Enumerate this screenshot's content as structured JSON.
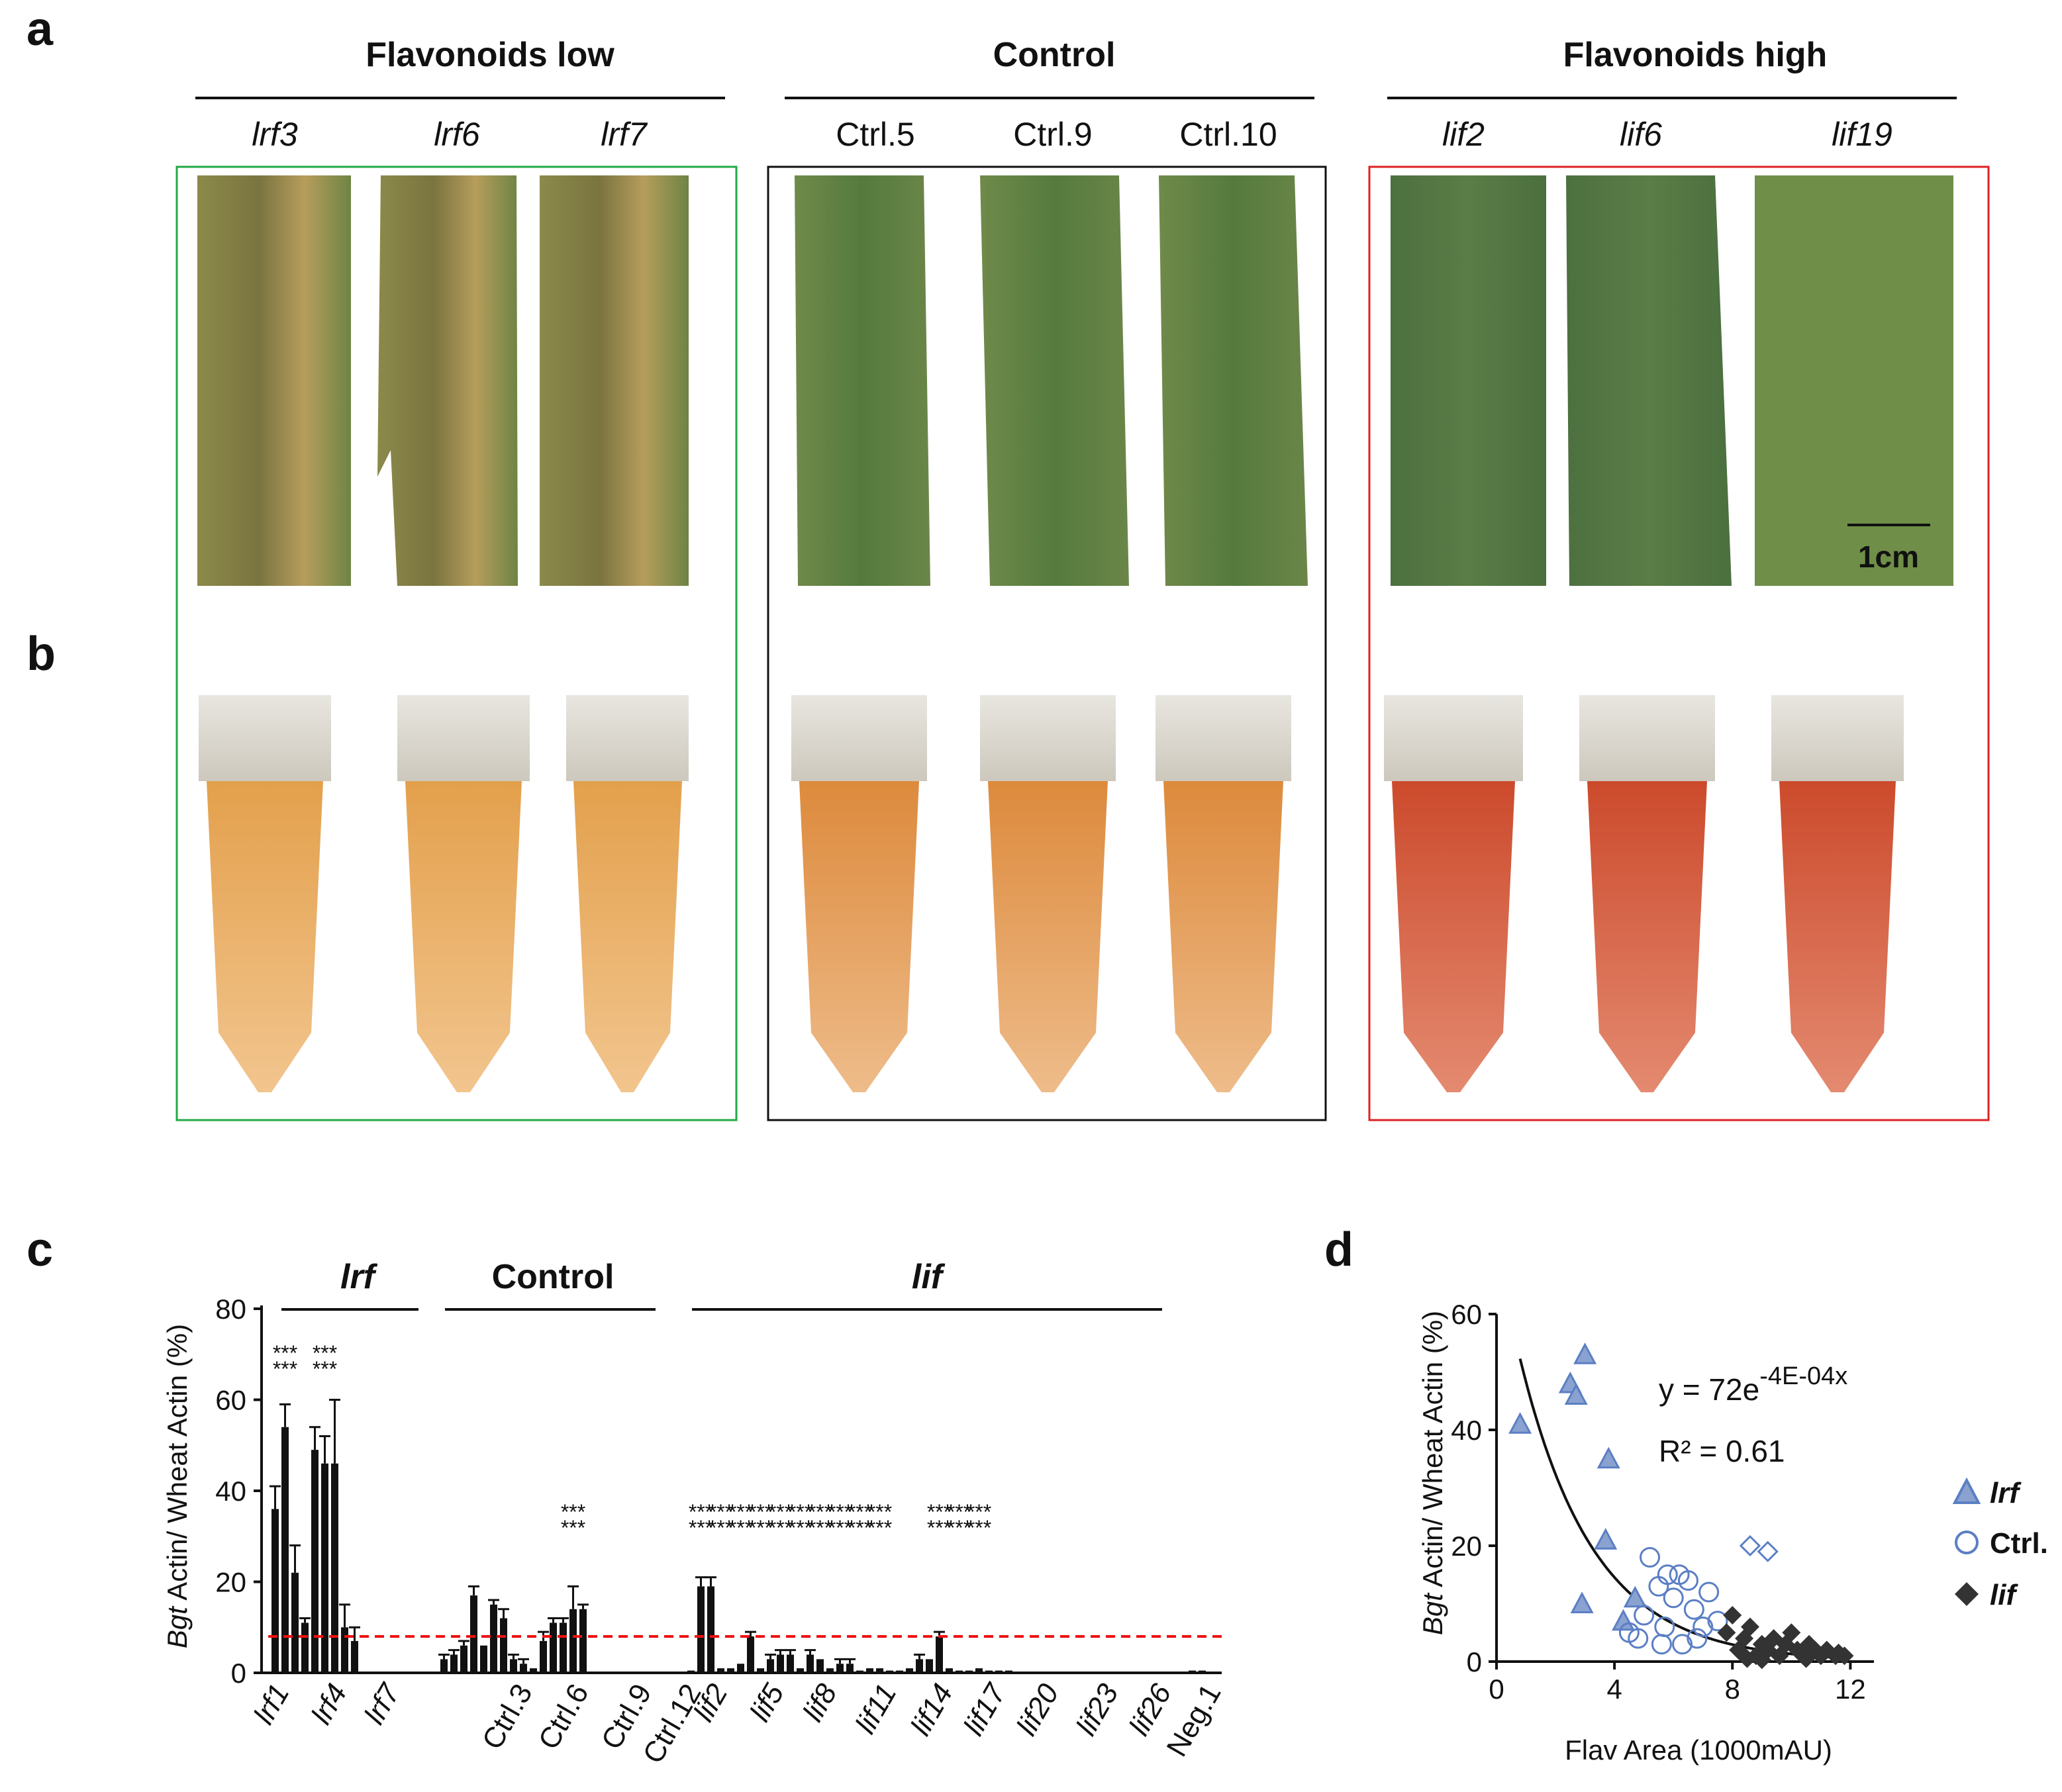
{
  "panel_labels": {
    "a": "a",
    "b": "b",
    "c": "c",
    "d": "d"
  },
  "colors": {
    "low_box": "#22aa44",
    "control_box": "#111111",
    "high_box": "#dd2222",
    "threshold_line": "#ee1111",
    "scatter_blue": "#5b7fc4",
    "scatter_dark": "#333333"
  },
  "panel_a": {
    "groups": [
      {
        "title": "Flavonoids  low",
        "samples": [
          "lrf3",
          "lrf6",
          "lrf7"
        ],
        "italic": true
      },
      {
        "title": "Control",
        "samples": [
          "Ctrl.5",
          "Ctrl.9",
          "Ctrl.10"
        ],
        "italic": false
      },
      {
        "title": "Flavonoids high",
        "samples": [
          "lif2",
          "lif6",
          "lif19"
        ],
        "italic": true
      }
    ],
    "scale_bar": "1cm"
  },
  "panel_c": {
    "group_labels": [
      "lrf",
      "Control",
      "lif"
    ],
    "ylabel_italic": "Bgt",
    "ylabel_rest": " Actin/ Wheat Actin (%)",
    "yticks": [
      "0",
      "20",
      "40",
      "60",
      "80"
    ],
    "xtick_labels": [
      "lrf1",
      "lrf4",
      "lrf7",
      "Ctrl.3",
      "Ctrl.6",
      "Ctrl.9",
      "Ctrl.12",
      "lif2",
      "lif5",
      "lif8",
      "lif11",
      "lif14",
      "lif17",
      "lif20",
      "lif23",
      "lif26",
      "Neg.1"
    ],
    "stars": "***"
  },
  "panel_d": {
    "ylabel_italic": "Bgt",
    "ylabel_rest": " Actin/ Wheat Actin (%)",
    "xlabel": "Flav Area (1000mAU)",
    "xticks": [
      "0",
      "4",
      "8",
      "12"
    ],
    "yticks": [
      "0",
      "20",
      "40",
      "60"
    ],
    "equation_main": "y = 72e",
    "equation_exp": "-4E-04x",
    "r2": "R² = 0.61",
    "legend": [
      "lrf",
      "Ctrl.",
      "lif"
    ]
  },
  "chart_data": [
    {
      "type": "bar",
      "title": "",
      "ylabel": "Bgt Actin/ Wheat Actin (%)",
      "ylim": [
        0,
        80
      ],
      "threshold": 8,
      "groups": [
        {
          "name": "lrf",
          "values": [
            36,
            54,
            22,
            11,
            49,
            46,
            46,
            10,
            7
          ],
          "errors": [
            5,
            5,
            6,
            1,
            5,
            6,
            14,
            5,
            3
          ]
        },
        {
          "name": "Control",
          "values": [
            3,
            4,
            6,
            17,
            6,
            15,
            12,
            3,
            2,
            1,
            7,
            11,
            11,
            14,
            14
          ],
          "errors": [
            1,
            1,
            1,
            2,
            0,
            1,
            2,
            1,
            1,
            0,
            2,
            1,
            1,
            5,
            1
          ]
        },
        {
          "name": "lif",
          "values": [
            0.5,
            19,
            19,
            1,
            1,
            2,
            8,
            1,
            3,
            4,
            4,
            1,
            4,
            3,
            1,
            2,
            2,
            0.5,
            1,
            1,
            0.5,
            0.5,
            1,
            3,
            3,
            8,
            1,
            0.5,
            0.5,
            1,
            0.5,
            0.5,
            0.5
          ],
          "errors": [
            0,
            2,
            2,
            0,
            0,
            0,
            1,
            0,
            1,
            1,
            1,
            0,
            1,
            0,
            0,
            1,
            1,
            0,
            0,
            0,
            0,
            0,
            0,
            1,
            0,
            1,
            0,
            0,
            0,
            0,
            0,
            0,
            0
          ]
        },
        {
          "name": "Neg",
          "values": [
            0.5,
            0.5
          ],
          "errors": [
            0,
            0
          ]
        }
      ]
    },
    {
      "type": "scatter",
      "title": "",
      "xlabel": "Flav Area (1000mAU)",
      "ylabel": "Bgt Actin/ Wheat Actin (%)",
      "xlim": [
        0,
        12.8
      ],
      "ylim": [
        0,
        60
      ],
      "fit": {
        "a": 72,
        "b": -0.0004,
        "unit_scale": 1000,
        "x_range": [
          0.8,
          12
        ]
      },
      "series": [
        {
          "name": "lrf",
          "marker": "triangle",
          "points": [
            [
              0.8,
              41
            ],
            [
              2.5,
              48
            ],
            [
              2.7,
              46
            ],
            [
              3.0,
              53
            ],
            [
              3.8,
              35
            ],
            [
              3.7,
              21
            ],
            [
              2.9,
              10
            ],
            [
              4.3,
              7
            ],
            [
              4.7,
              11
            ]
          ]
        },
        {
          "name": "Ctrl.",
          "marker": "circle",
          "points": [
            [
              4.5,
              5
            ],
            [
              4.8,
              4
            ],
            [
              5.0,
              8
            ],
            [
              5.2,
              18
            ],
            [
              5.5,
              13
            ],
            [
              5.7,
              6
            ],
            [
              5.8,
              15
            ],
            [
              6.0,
              11
            ],
            [
              6.2,
              15
            ],
            [
              6.3,
              3
            ],
            [
              6.5,
              14
            ],
            [
              6.7,
              9
            ],
            [
              7.0,
              6
            ],
            [
              7.2,
              12
            ],
            [
              7.5,
              7
            ],
            [
              5.6,
              3
            ],
            [
              6.8,
              4
            ]
          ]
        },
        {
          "name": "Ctrl. (diamond)",
          "marker": "open-diamond",
          "points": [
            [
              8.6,
              20
            ],
            [
              9.2,
              19
            ]
          ]
        },
        {
          "name": "lif",
          "marker": "diamond",
          "points": [
            [
              7.8,
              5
            ],
            [
              8.0,
              8
            ],
            [
              8.2,
              2
            ],
            [
              8.4,
              4
            ],
            [
              8.6,
              6
            ],
            [
              8.8,
              1
            ],
            [
              9.0,
              3
            ],
            [
              9.2,
              2
            ],
            [
              9.4,
              4
            ],
            [
              9.6,
              1
            ],
            [
              9.8,
              3
            ],
            [
              10.0,
              5
            ],
            [
              10.2,
              2
            ],
            [
              10.4,
              1
            ],
            [
              10.6,
              3
            ],
            [
              10.8,
              2
            ],
            [
              11.0,
              1
            ],
            [
              11.2,
              2
            ],
            [
              11.5,
              1
            ],
            [
              11.8,
              1
            ],
            [
              8.5,
              0.5
            ],
            [
              9.0,
              0.3
            ],
            [
              10.5,
              0.5
            ],
            [
              11.6,
              1.5
            ]
          ]
        }
      ]
    }
  ]
}
